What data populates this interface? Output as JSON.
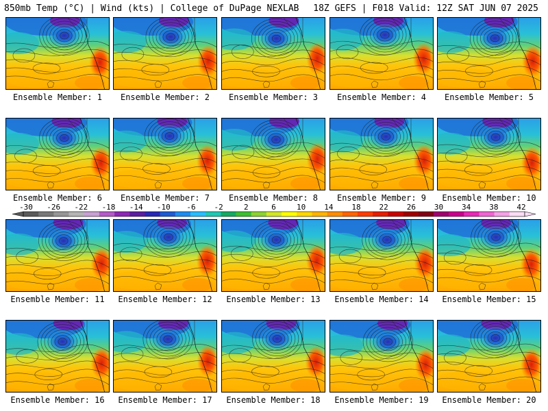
{
  "header": {
    "left_title": "850mb Temp (°C) | Wind (kts) | College of DuPage NEXLAB",
    "right_title": "18Z GEFS | F018 Valid: 12Z SAT JUN 07 2025"
  },
  "panels": [
    {
      "label": "Ensemble Member: 1"
    },
    {
      "label": "Ensemble Member: 2"
    },
    {
      "label": "Ensemble Member: 3"
    },
    {
      "label": "Ensemble Member: 4"
    },
    {
      "label": "Ensemble Member: 5"
    },
    {
      "label": "Ensemble Member: 6"
    },
    {
      "label": "Ensemble Member: 7"
    },
    {
      "label": "Ensemble Member: 8"
    },
    {
      "label": "Ensemble Member: 9"
    },
    {
      "label": "Ensemble Member: 10"
    },
    {
      "label": "Ensemble Member: 11"
    },
    {
      "label": "Ensemble Member: 12"
    },
    {
      "label": "Ensemble Member: 13"
    },
    {
      "label": "Ensemble Member: 14"
    },
    {
      "label": "Ensemble Member: 15"
    },
    {
      "label": "Ensemble Member: 16"
    },
    {
      "label": "Ensemble Member: 17"
    },
    {
      "label": "Ensemble Member: 18"
    },
    {
      "label": "Ensemble Member: 19"
    },
    {
      "label": "Ensemble Member: 20"
    }
  ],
  "colorbar": {
    "tick_labels": [
      "-30",
      "-26",
      "-22",
      "-18",
      "-14",
      "-10",
      "-6",
      "-2",
      "2",
      "6",
      "10",
      "14",
      "18",
      "22",
      "26",
      "30",
      "34",
      "38",
      "42"
    ],
    "colors": [
      "#5a5a5a",
      "#787878",
      "#969696",
      "#b4b4b4",
      "#c8a0d2",
      "#b45ac8",
      "#8c28b4",
      "#5a1ea0",
      "#2828b4",
      "#1e5ad2",
      "#1e8cf0",
      "#28beff",
      "#1ec8b4",
      "#14aa64",
      "#3cbe32",
      "#8cd232",
      "#d2e628",
      "#ffff00",
      "#ffd700",
      "#ffb400",
      "#ff8c00",
      "#ff6400",
      "#ff3c00",
      "#e61e00",
      "#c80000",
      "#a00000",
      "#820014",
      "#a0006e",
      "#c8008c",
      "#e628b4",
      "#f064d2",
      "#f5a0e6",
      "#fadcf5"
    ]
  }
}
